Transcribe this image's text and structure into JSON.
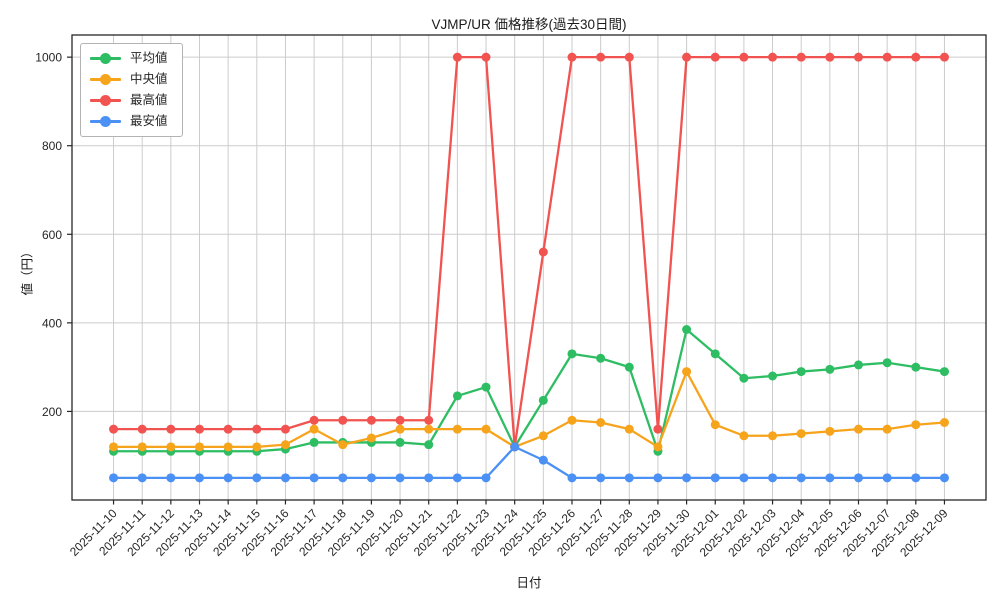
{
  "chart_data": {
    "type": "line",
    "title": "VJMP/UR 価格推移(過去30日間)",
    "xlabel": "日付",
    "ylabel": "値（円）",
    "x": [
      "2025-11-10",
      "2025-11-11",
      "2025-11-12",
      "2025-11-13",
      "2025-11-14",
      "2025-11-15",
      "2025-11-16",
      "2025-11-17",
      "2025-11-18",
      "2025-11-19",
      "2025-11-20",
      "2025-11-21",
      "2025-11-22",
      "2025-11-23",
      "2025-11-24",
      "2025-11-25",
      "2025-11-26",
      "2025-11-27",
      "2025-11-28",
      "2025-11-29",
      "2025-11-30",
      "2025-12-01",
      "2025-12-02",
      "2025-12-03",
      "2025-12-04",
      "2025-12-05",
      "2025-12-06",
      "2025-12-07",
      "2025-12-08",
      "2025-12-09"
    ],
    "series": [
      {
        "name": "平均値",
        "color": "#2ebd63",
        "values": [
          110,
          110,
          110,
          110,
          110,
          110,
          115,
          130,
          130,
          130,
          130,
          125,
          235,
          255,
          120,
          225,
          330,
          320,
          300,
          110,
          385,
          330,
          275,
          280,
          290,
          295,
          305,
          310,
          300,
          290
        ]
      },
      {
        "name": "中央値",
        "color": "#f7a41d",
        "values": [
          120,
          120,
          120,
          120,
          120,
          120,
          125,
          160,
          125,
          140,
          160,
          160,
          160,
          160,
          120,
          145,
          180,
          175,
          160,
          120,
          290,
          170,
          145,
          145,
          150,
          155,
          160,
          160,
          170,
          175
        ]
      },
      {
        "name": "最高値",
        "color": "#f15450",
        "values": [
          160,
          160,
          160,
          160,
          160,
          160,
          160,
          180,
          180,
          180,
          180,
          180,
          1000,
          1000,
          120,
          560,
          1000,
          1000,
          1000,
          160,
          1000,
          1000,
          1000,
          1000,
          1000,
          1000,
          1000,
          1000,
          1000,
          1000
        ]
      },
      {
        "name": "最安値",
        "color": "#4a90f5",
        "values": [
          50,
          50,
          50,
          50,
          50,
          50,
          50,
          50,
          50,
          50,
          50,
          50,
          50,
          50,
          120,
          90,
          50,
          50,
          50,
          50,
          50,
          50,
          50,
          50,
          50,
          50,
          50,
          50,
          50,
          50
        ]
      }
    ],
    "ylim": [
      0,
      1050
    ],
    "yticks": [
      200,
      400,
      600,
      800,
      1000
    ],
    "grid": true,
    "legend_position": "upper left"
  }
}
